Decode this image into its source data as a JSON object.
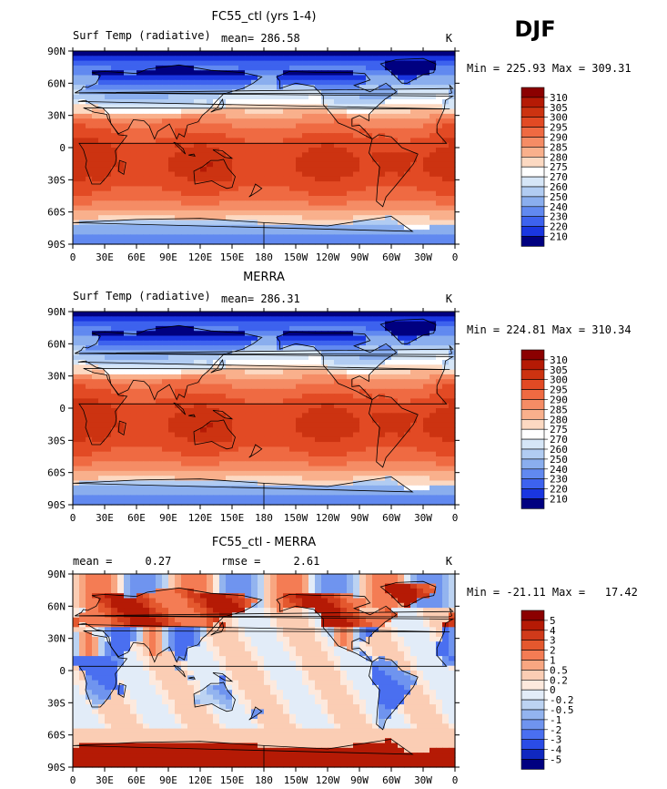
{
  "figure": {
    "season_label": "DJF"
  },
  "chart_data": [
    {
      "type": "heatmap",
      "title": "FC55_ctl (yrs 1-4)",
      "left_label": "Surf Temp (radiative)",
      "stat_text": "mean= 286.58",
      "units": "K",
      "minmax_text": "Min = 225.93 Max = 309.31",
      "field": "abs",
      "xticks": [
        "0",
        "30E",
        "60E",
        "90E",
        "120E",
        "150E",
        "180",
        "150W",
        "120W",
        "90W",
        "60W",
        "30W",
        "0"
      ],
      "yticks": [
        "90N",
        "60N",
        "30N",
        "0",
        "30S",
        "60S",
        "90S"
      ],
      "colorbar": {
        "levels": [
          "310",
          "305",
          "300",
          "295",
          "290",
          "285",
          "280",
          "275",
          "270",
          "260",
          "250",
          "240",
          "230",
          "220",
          "210"
        ],
        "colors": [
          "#8b0000",
          "#b51a05",
          "#cc3311",
          "#e24a24",
          "#ef6a42",
          "#f58c65",
          "#f9b08c",
          "#fcd9c2",
          "#ffffff",
          "#d6e6f7",
          "#b1ccf2",
          "#8aaeee",
          "#6189f0",
          "#3d62ee",
          "#1a36e0",
          "#000080"
        ]
      }
    },
    {
      "type": "heatmap",
      "title": "MERRA",
      "left_label": "Surf Temp (radiative)",
      "stat_text": "mean= 286.31",
      "units": "K",
      "minmax_text": "Min = 224.81 Max = 310.34",
      "field": "abs",
      "xticks": [
        "0",
        "30E",
        "60E",
        "90E",
        "120E",
        "150E",
        "180",
        "150W",
        "120W",
        "90W",
        "60W",
        "30W",
        "0"
      ],
      "yticks": [
        "90N",
        "60N",
        "30N",
        "0",
        "30S",
        "60S",
        "90S"
      ],
      "colorbar": {
        "levels": [
          "310",
          "305",
          "300",
          "295",
          "290",
          "285",
          "280",
          "275",
          "270",
          "260",
          "250",
          "240",
          "230",
          "220",
          "210"
        ],
        "colors": [
          "#8b0000",
          "#b51a05",
          "#cc3311",
          "#e24a24",
          "#ef6a42",
          "#f58c65",
          "#f9b08c",
          "#fcd9c2",
          "#ffffff",
          "#d6e6f7",
          "#b1ccf2",
          "#8aaeee",
          "#6189f0",
          "#3d62ee",
          "#1a36e0",
          "#000080"
        ]
      }
    },
    {
      "type": "heatmap",
      "title": "FC55_ctl - MERRA",
      "left_label": "mean =     0.27",
      "stat_text": "rmse =     2.61",
      "units": "K",
      "minmax_text": "Min = -21.11 Max =   17.42",
      "field": "diff",
      "xticks": [
        "0",
        "30E",
        "60E",
        "90E",
        "120E",
        "150E",
        "180",
        "150W",
        "120W",
        "90W",
        "60W",
        "30W",
        "0"
      ],
      "yticks": [
        "90N",
        "60N",
        "30N",
        "0",
        "30S",
        "60S",
        "90S"
      ],
      "colorbar": {
        "levels": [
          "5",
          "4",
          "3",
          "2",
          "1",
          "0.5",
          "0.2",
          "0",
          "-0.2",
          "-0.5",
          "-1",
          "-2",
          "-3",
          "-4",
          "-5"
        ],
        "colors": [
          "#8b0000",
          "#b51a05",
          "#d03a1a",
          "#e4582e",
          "#f47c54",
          "#f8a681",
          "#fbcdb4",
          "#fde9dd",
          "#e2ecf8",
          "#bcd3f2",
          "#93b4ef",
          "#6f94ef",
          "#4a6ff0",
          "#2a4ce6",
          "#1028c0",
          "#000080"
        ]
      }
    }
  ]
}
